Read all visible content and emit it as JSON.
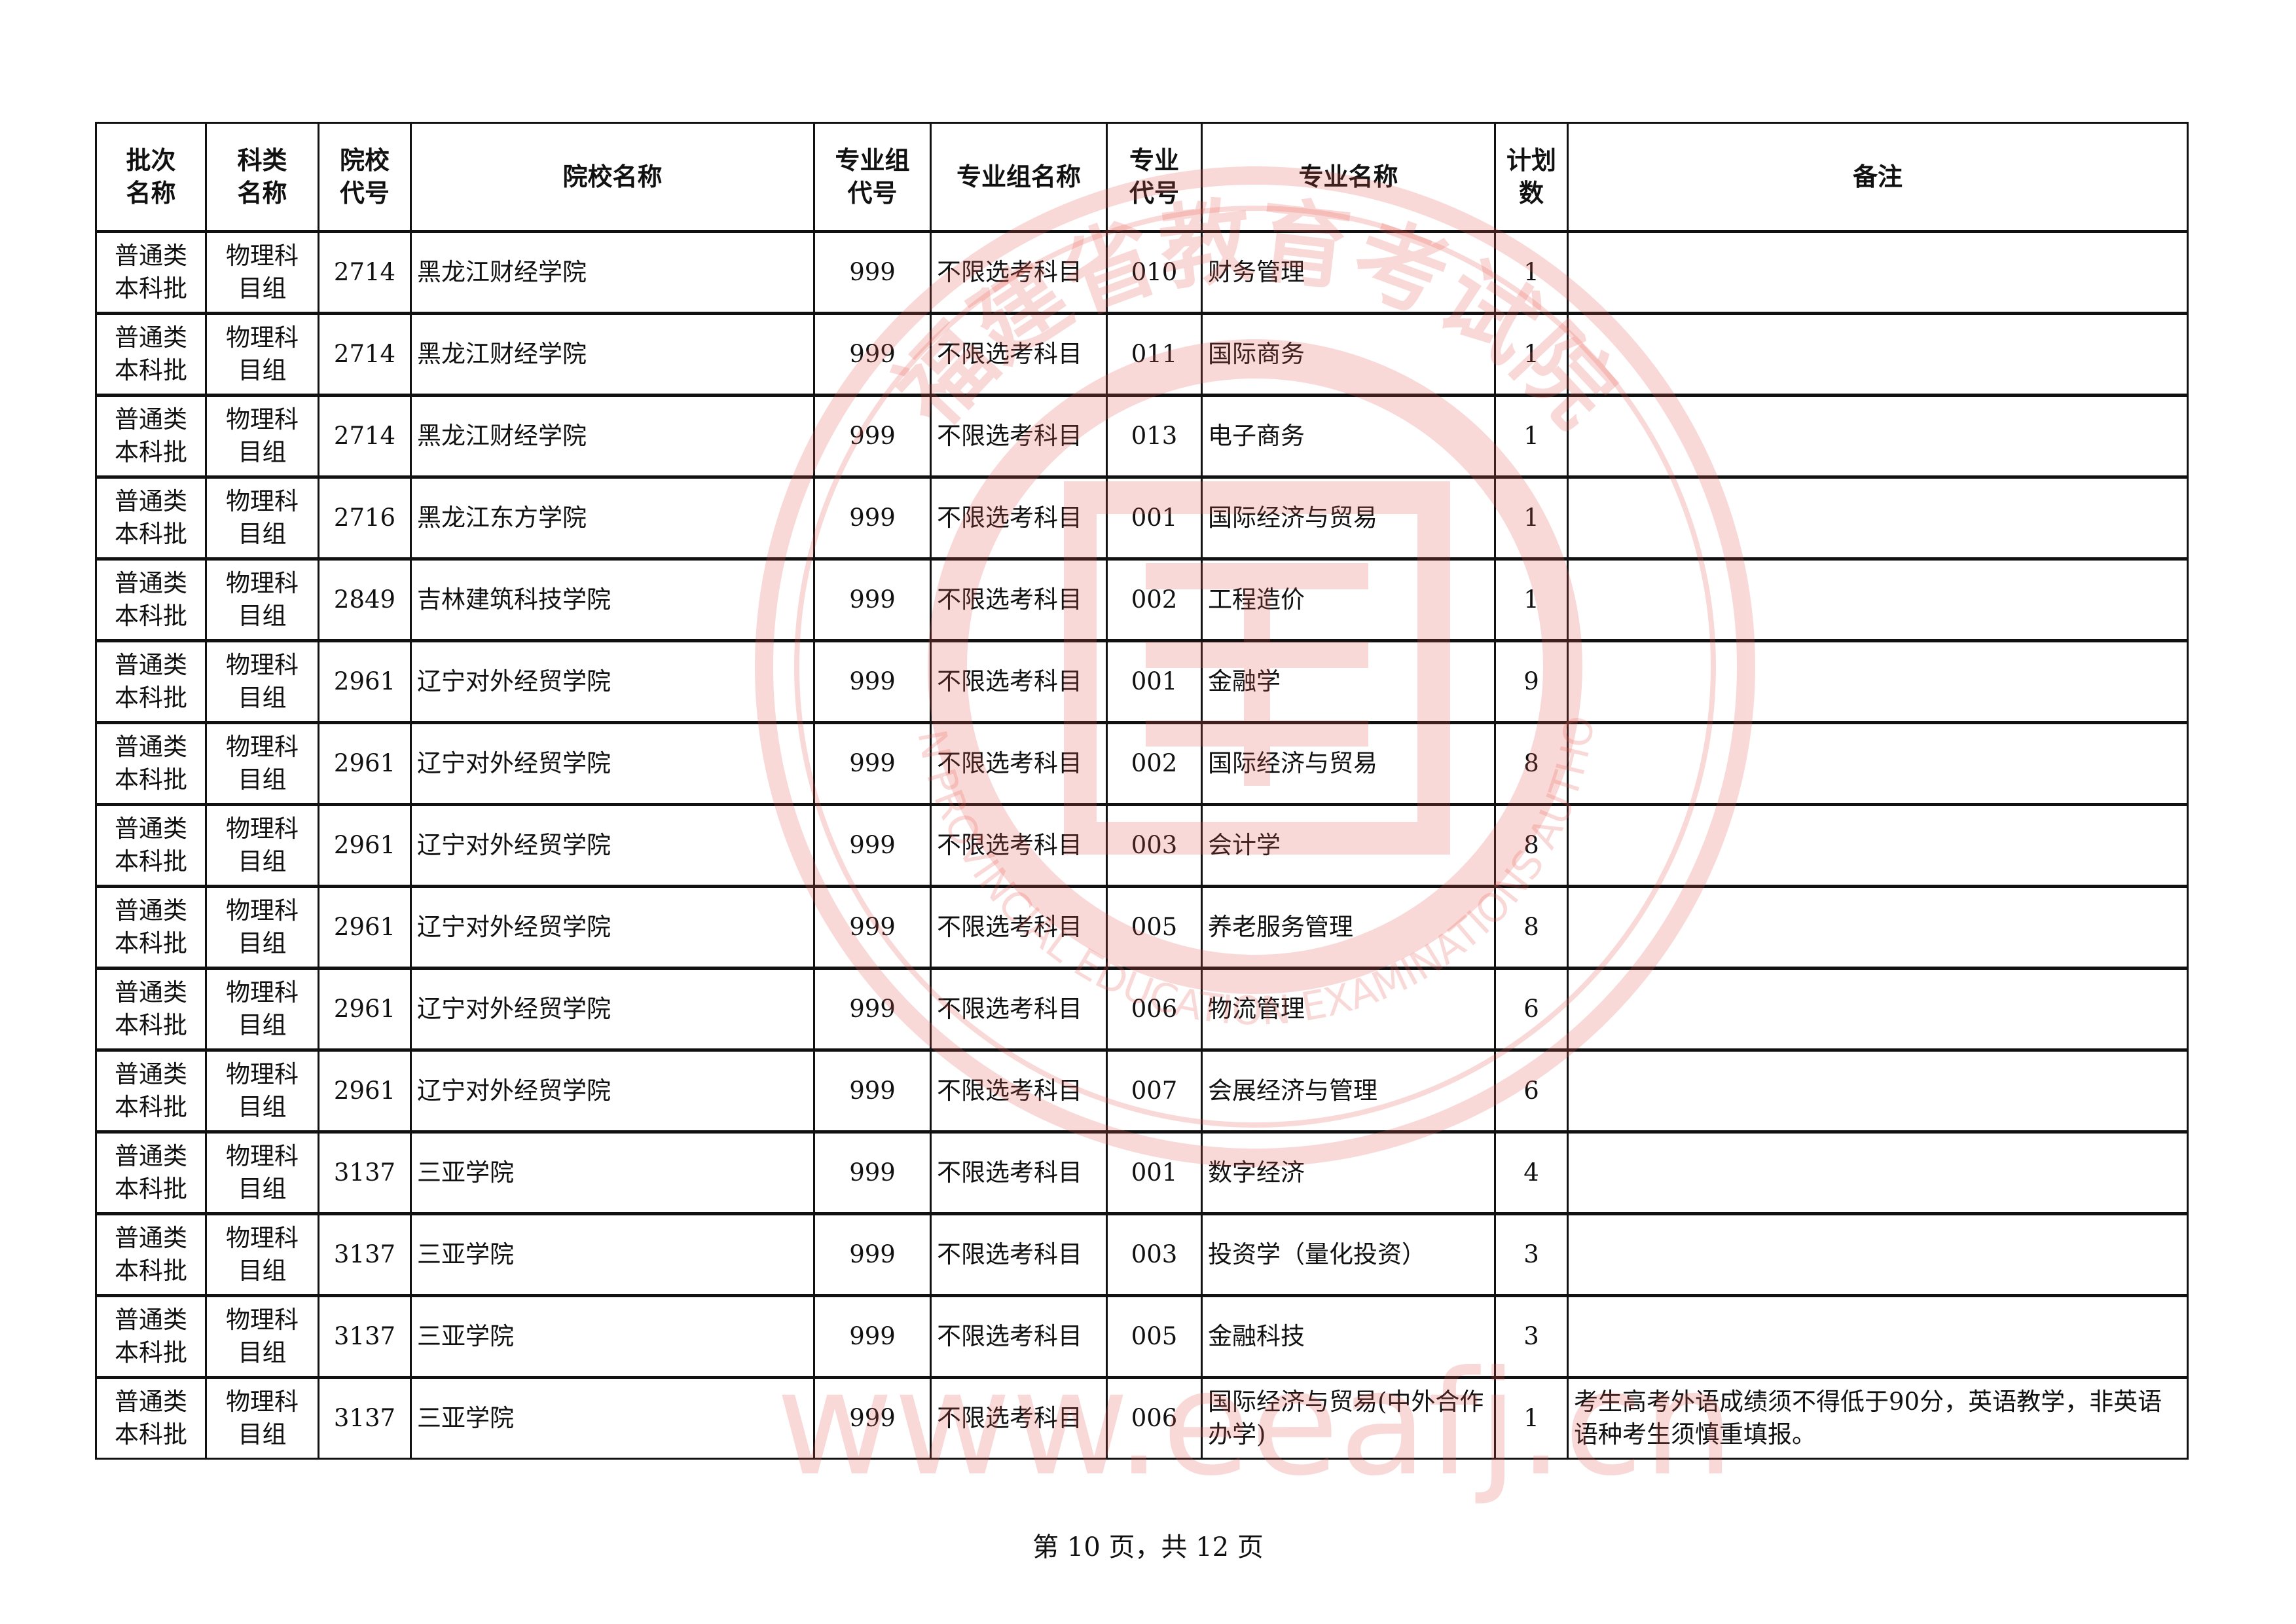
{
  "table": {
    "headers": [
      "批次名称",
      "科类名称",
      "院校代号",
      "院校名称",
      "专业组代号",
      "专业组名称",
      "专业代号",
      "专业名称",
      "计划数",
      "备注"
    ],
    "header_lines": [
      [
        "批次",
        "名称"
      ],
      [
        "科类",
        "名称"
      ],
      [
        "院校",
        "代号"
      ],
      [
        "院校名称"
      ],
      [
        "专业组",
        "代号"
      ],
      [
        "专业组名称"
      ],
      [
        "专业",
        "代号"
      ],
      [
        "专业名称"
      ],
      [
        "计划",
        "数"
      ],
      [
        "备注"
      ]
    ],
    "rows": [
      {
        "batch": "普通类本科批",
        "subject": "物理科目组",
        "school_code": "2714",
        "school": "黑龙江财经学院",
        "group_code": "999",
        "group_name": "不限选考科目",
        "major_code": "010",
        "major": "财务管理",
        "plan": "1",
        "note": ""
      },
      {
        "batch": "普通类本科批",
        "subject": "物理科目组",
        "school_code": "2714",
        "school": "黑龙江财经学院",
        "group_code": "999",
        "group_name": "不限选考科目",
        "major_code": "011",
        "major": "国际商务",
        "plan": "1",
        "note": ""
      },
      {
        "batch": "普通类本科批",
        "subject": "物理科目组",
        "school_code": "2714",
        "school": "黑龙江财经学院",
        "group_code": "999",
        "group_name": "不限选考科目",
        "major_code": "013",
        "major": "电子商务",
        "plan": "1",
        "note": ""
      },
      {
        "batch": "普通类本科批",
        "subject": "物理科目组",
        "school_code": "2716",
        "school": "黑龙江东方学院",
        "group_code": "999",
        "group_name": "不限选考科目",
        "major_code": "001",
        "major": "国际经济与贸易",
        "plan": "1",
        "note": ""
      },
      {
        "batch": "普通类本科批",
        "subject": "物理科目组",
        "school_code": "2849",
        "school": "吉林建筑科技学院",
        "group_code": "999",
        "group_name": "不限选考科目",
        "major_code": "002",
        "major": "工程造价",
        "plan": "1",
        "note": ""
      },
      {
        "batch": "普通类本科批",
        "subject": "物理科目组",
        "school_code": "2961",
        "school": "辽宁对外经贸学院",
        "group_code": "999",
        "group_name": "不限选考科目",
        "major_code": "001",
        "major": "金融学",
        "plan": "9",
        "note": ""
      },
      {
        "batch": "普通类本科批",
        "subject": "物理科目组",
        "school_code": "2961",
        "school": "辽宁对外经贸学院",
        "group_code": "999",
        "group_name": "不限选考科目",
        "major_code": "002",
        "major": "国际经济与贸易",
        "plan": "8",
        "note": ""
      },
      {
        "batch": "普通类本科批",
        "subject": "物理科目组",
        "school_code": "2961",
        "school": "辽宁对外经贸学院",
        "group_code": "999",
        "group_name": "不限选考科目",
        "major_code": "003",
        "major": "会计学",
        "plan": "8",
        "note": ""
      },
      {
        "batch": "普通类本科批",
        "subject": "物理科目组",
        "school_code": "2961",
        "school": "辽宁对外经贸学院",
        "group_code": "999",
        "group_name": "不限选考科目",
        "major_code": "005",
        "major": "养老服务管理",
        "plan": "8",
        "note": ""
      },
      {
        "batch": "普通类本科批",
        "subject": "物理科目组",
        "school_code": "2961",
        "school": "辽宁对外经贸学院",
        "group_code": "999",
        "group_name": "不限选考科目",
        "major_code": "006",
        "major": "物流管理",
        "plan": "6",
        "note": ""
      },
      {
        "batch": "普通类本科批",
        "subject": "物理科目组",
        "school_code": "2961",
        "school": "辽宁对外经贸学院",
        "group_code": "999",
        "group_name": "不限选考科目",
        "major_code": "007",
        "major": "会展经济与管理",
        "plan": "6",
        "note": ""
      },
      {
        "batch": "普通类本科批",
        "subject": "物理科目组",
        "school_code": "3137",
        "school": "三亚学院",
        "group_code": "999",
        "group_name": "不限选考科目",
        "major_code": "001",
        "major": "数字经济",
        "plan": "4",
        "note": ""
      },
      {
        "batch": "普通类本科批",
        "subject": "物理科目组",
        "school_code": "3137",
        "school": "三亚学院",
        "group_code": "999",
        "group_name": "不限选考科目",
        "major_code": "003",
        "major": "投资学（量化投资）",
        "plan": "3",
        "note": ""
      },
      {
        "batch": "普通类本科批",
        "subject": "物理科目组",
        "school_code": "3137",
        "school": "三亚学院",
        "group_code": "999",
        "group_name": "不限选考科目",
        "major_code": "005",
        "major": "金融科技",
        "plan": "3",
        "note": ""
      },
      {
        "batch": "普通类本科批",
        "subject": "物理科目组",
        "school_code": "3137",
        "school": "三亚学院",
        "group_code": "999",
        "group_name": "不限选考科目",
        "major_code": "006",
        "major": "国际经济与贸易(中外合作办学)",
        "plan": "1",
        "note": "考生高考外语成绩须不得低于90分，英语教学，非英语语种考生须慎重填报。"
      }
    ]
  },
  "footer": {
    "page_text": "第 10 页，共 12 页"
  },
  "watermark": {
    "cn": "福建省教育考试院",
    "en": "FUJIAN PROVINCIAL EDUCATION EXAMINATIONS AUTHORITY",
    "url": "www.eeafj.cn",
    "color": "#e8584f"
  }
}
